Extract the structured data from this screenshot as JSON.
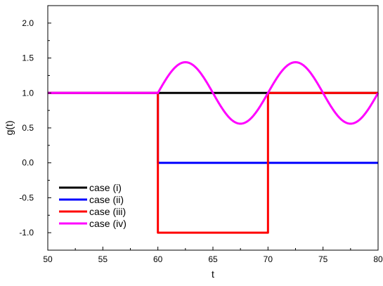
{
  "chart_data": {
    "type": "line",
    "xlabel": "t",
    "ylabel": "g(t)",
    "xlim": [
      50,
      80
    ],
    "ylim": [
      -1.25,
      2.25
    ],
    "xticks": [
      50,
      55,
      60,
      65,
      70,
      75,
      80
    ],
    "xtick_labels": [
      "50",
      "55",
      "60",
      "65",
      "70",
      "75",
      "80"
    ],
    "yticks": [
      -1.0,
      -0.5,
      0.0,
      0.5,
      1.0,
      1.5,
      2.0
    ],
    "ytick_labels": [
      "-1.0",
      "-0.5",
      "0.0",
      "0.5",
      "1.0",
      "1.5",
      "2.0"
    ],
    "grid": false,
    "legend_position": "bottom-left",
    "series": [
      {
        "name": "case (i)",
        "color": "#000000",
        "x": [
          50,
          80
        ],
        "y": [
          1.0,
          1.0
        ]
      },
      {
        "name": "case (ii)",
        "color": "#0000ff",
        "x": [
          50,
          60,
          60,
          80
        ],
        "y": [
          1.0,
          1.0,
          0.0,
          0.0
        ]
      },
      {
        "name": "case (iii)",
        "color": "#ff0000",
        "x": [
          50,
          60,
          60,
          70,
          70,
          80
        ],
        "y": [
          1.0,
          1.0,
          -1.0,
          -1.0,
          1.0,
          1.0
        ]
      },
      {
        "name": "case (iv)",
        "color": "#ff00ff",
        "x": [
          50,
          60,
          61,
          62,
          62.5,
          63,
          64,
          65,
          66,
          67,
          67.5,
          68,
          69,
          70,
          71,
          72,
          72.5,
          73,
          74,
          75,
          76,
          77,
          77.5,
          78,
          79,
          80
        ],
        "y": [
          1.0,
          1.0,
          1.26,
          1.42,
          1.44,
          1.42,
          1.26,
          1.0,
          0.74,
          0.58,
          0.56,
          0.58,
          0.74,
          1.0,
          1.26,
          1.42,
          1.44,
          1.42,
          1.26,
          1.0,
          0.74,
          0.58,
          0.56,
          0.58,
          0.74,
          1.0
        ]
      }
    ]
  }
}
